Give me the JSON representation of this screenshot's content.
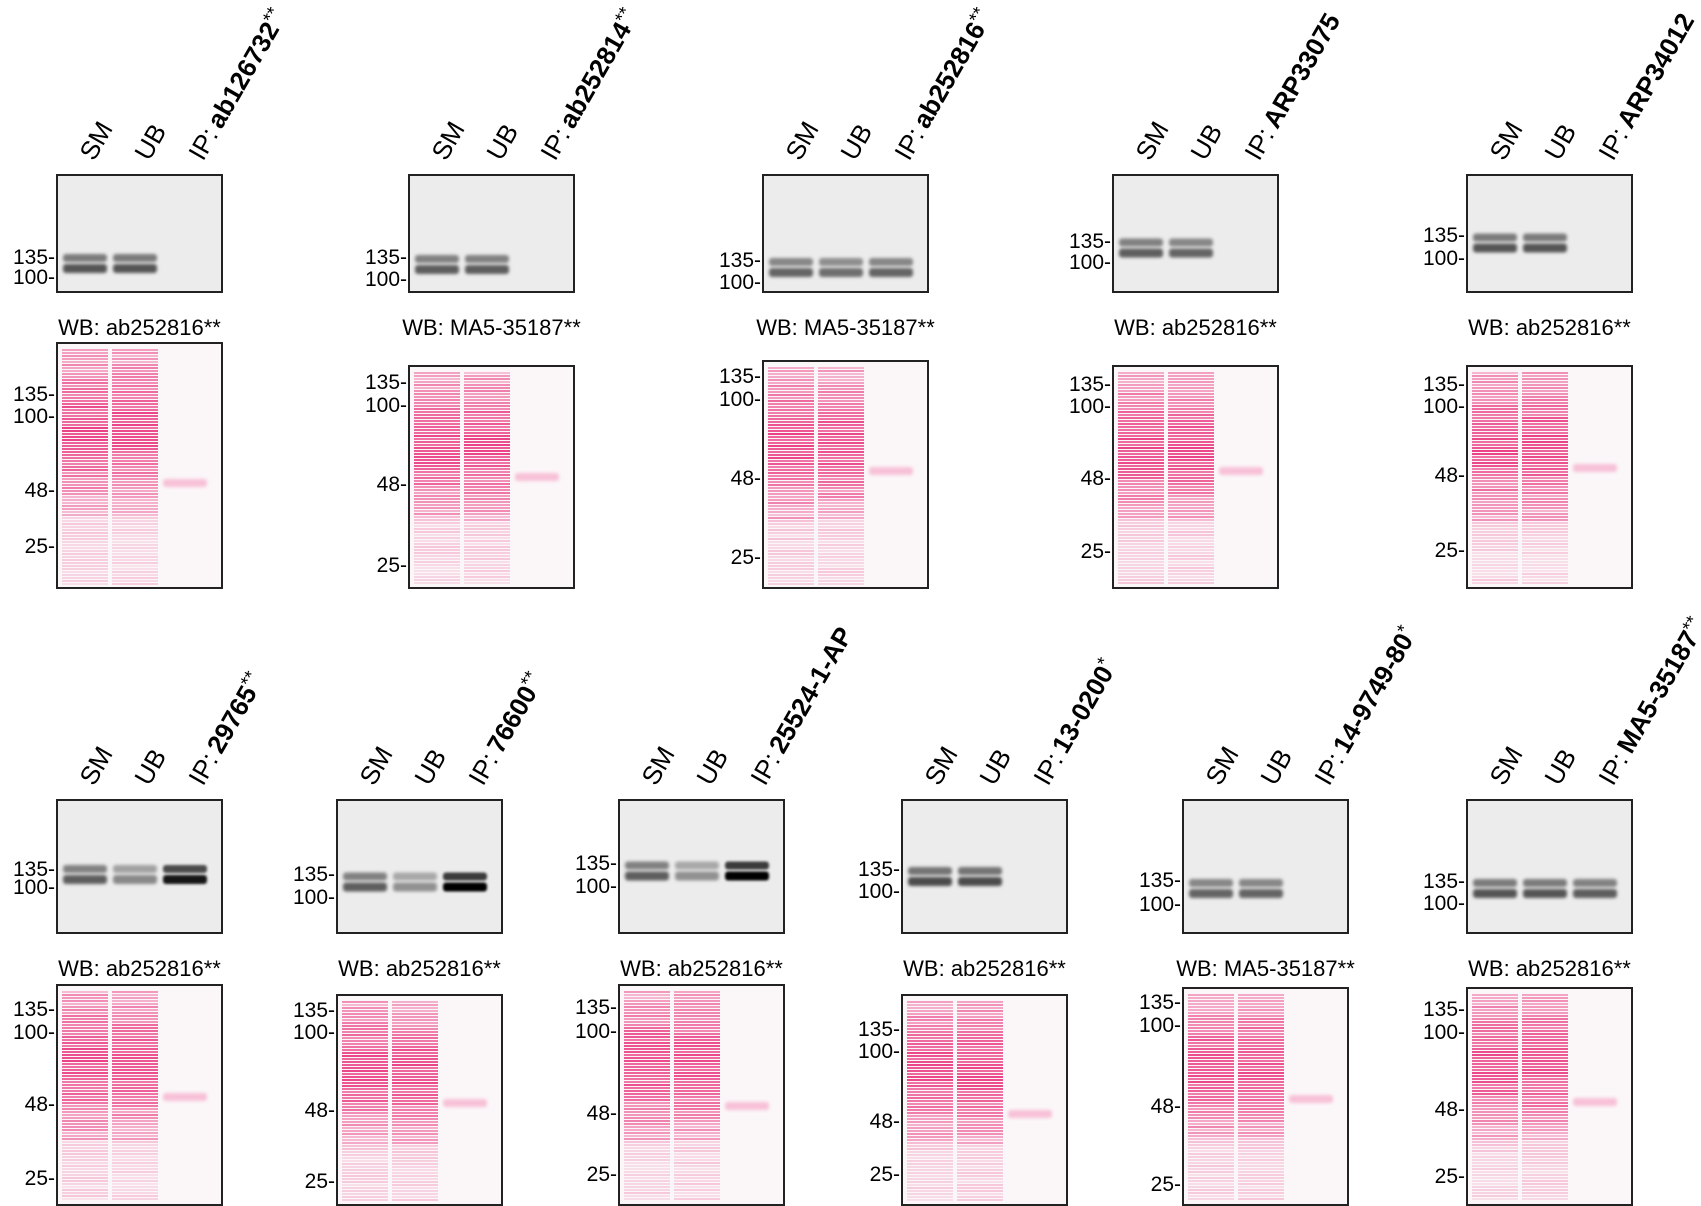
{
  "figure": {
    "lane_labels": [
      "SM",
      "UB",
      "IP:"
    ],
    "panels": [
      {
        "ip_antibody": "ab126732",
        "ip_suffix": "**",
        "wb_label": "WB: ab252816**",
        "blot_markers": [
          "135-",
          "100-"
        ],
        "stain_markers": [
          "135-",
          "100-",
          "48-",
          "25-"
        ],
        "blot_lane_intensity": [
          0.55,
          0.55,
          0.0
        ]
      },
      {
        "ip_antibody": "ab252814",
        "ip_suffix": "**",
        "wb_label": "WB: MA5-35187**",
        "blot_markers": [
          "135-",
          "100-"
        ],
        "stain_markers": [
          "135-",
          "100-",
          "48-",
          "25-"
        ],
        "blot_lane_intensity": [
          0.5,
          0.5,
          0.0
        ]
      },
      {
        "ip_antibody": "ab252816",
        "ip_suffix": "**",
        "wb_label": "WB: MA5-35187**",
        "blot_markers": [
          "135-",
          "100-"
        ],
        "stain_markers": [
          "135-",
          "100-",
          "48-",
          "25-"
        ],
        "blot_lane_intensity": [
          0.45,
          0.4,
          0.45
        ]
      },
      {
        "ip_antibody": "ARP33075",
        "ip_suffix": "",
        "wb_label": "WB: ab252816**",
        "blot_markers": [
          "135-",
          "100-"
        ],
        "stain_markers": [
          "135-",
          "100-",
          "48-",
          "25-"
        ],
        "blot_lane_intensity": [
          0.5,
          0.45,
          0.0
        ]
      },
      {
        "ip_antibody": "ARP34012",
        "ip_suffix": "",
        "wb_label": "WB: ab252816**",
        "blot_markers": [
          "135-",
          "100-"
        ],
        "stain_markers": [
          "135-",
          "100-",
          "48-",
          "25-"
        ],
        "blot_lane_intensity": [
          0.55,
          0.55,
          0.0
        ]
      },
      {
        "ip_antibody": "29765",
        "ip_suffix": "**",
        "wb_label": "WB: ab252816**",
        "blot_markers": [
          "135-",
          "100-"
        ],
        "stain_markers": [
          "135-",
          "100-",
          "48-",
          "25-"
        ],
        "blot_lane_intensity": [
          0.5,
          0.25,
          0.9
        ]
      },
      {
        "ip_antibody": "76600",
        "ip_suffix": "**",
        "wb_label": "WB: ab252816**",
        "blot_markers": [
          "135-",
          "100-"
        ],
        "stain_markers": [
          "135-",
          "100-",
          "48-",
          "25-"
        ],
        "blot_lane_intensity": [
          0.5,
          0.2,
          1.0
        ]
      },
      {
        "ip_antibody": "25524-1-AP",
        "ip_suffix": "",
        "wb_label": "WB: ab252816**",
        "blot_markers": [
          "135-",
          "100-"
        ],
        "stain_markers": [
          "135-",
          "100-",
          "48-",
          "25-"
        ],
        "blot_lane_intensity": [
          0.5,
          0.2,
          1.0
        ]
      },
      {
        "ip_antibody": "13-0200",
        "ip_suffix": "*",
        "wb_label": "WB: ab252816**",
        "blot_markers": [
          "135-",
          "100-"
        ],
        "stain_markers": [
          "135-",
          "100-",
          "48-",
          "25-"
        ],
        "blot_lane_intensity": [
          0.6,
          0.6,
          0.0
        ]
      },
      {
        "ip_antibody": "14-9749-80",
        "ip_suffix": "*",
        "wb_label": "WB: MA5-35187**",
        "blot_markers": [
          "135-",
          "100-"
        ],
        "stain_markers": [
          "135-",
          "100-",
          "48-",
          "25-"
        ],
        "blot_lane_intensity": [
          0.45,
          0.45,
          0.0
        ]
      },
      {
        "ip_antibody": "MA5-35187",
        "ip_suffix": "**",
        "wb_label": "WB: ab252816**",
        "blot_markers": [
          "135-",
          "100-"
        ],
        "stain_markers": [
          "135-",
          "100-",
          "48-",
          "25-"
        ],
        "blot_lane_intensity": [
          0.55,
          0.55,
          0.5
        ]
      }
    ]
  }
}
